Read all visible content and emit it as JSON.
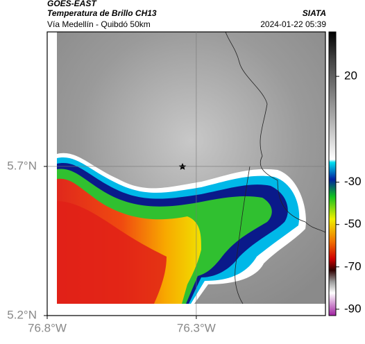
{
  "header": {
    "source": "GOES-EAST",
    "product": "Temperatura de Brillo CH13",
    "region": "Vía Medellín - Quibdó 50km",
    "agency": "SIATA",
    "timestamp": "2024-01-22 05:39"
  },
  "map": {
    "xlim": [
      -76.8,
      -75.867
    ],
    "ylim": [
      5.2,
      6.151
    ],
    "lon_ticks": [
      {
        "value": -76.8,
        "label": "76.8°W"
      },
      {
        "value": -76.3,
        "label": "76.3°W"
      }
    ],
    "lat_ticks": [
      {
        "value": 5.2,
        "label": "5.2°N"
      },
      {
        "value": 5.7,
        "label": "5.7°N"
      }
    ],
    "grid": true
  },
  "colorbar": {
    "lim": [
      41,
      -93
    ],
    "ticks": [
      20,
      -30,
      -50,
      -70,
      -90
    ]
  }
}
